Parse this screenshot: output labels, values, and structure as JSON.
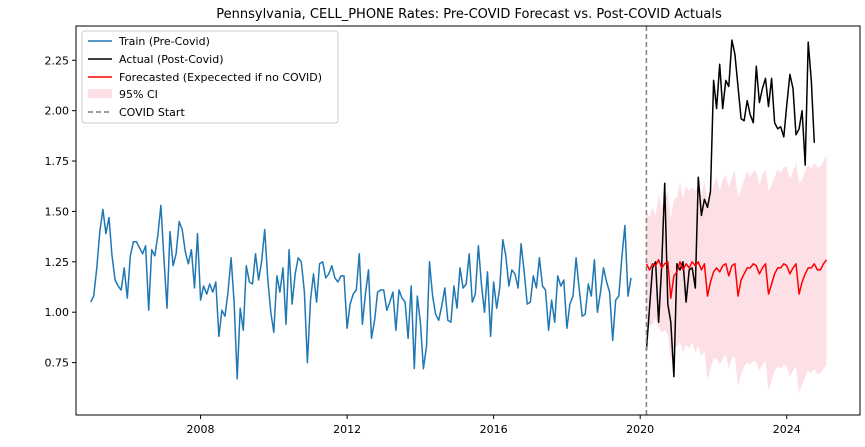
{
  "chart_data": {
    "type": "line",
    "title": "Pennsylvania, CELL_PHONE Rates: Pre-COVID Forecast vs. Post-COVID Actuals",
    "xlabel": "",
    "ylabel": "",
    "xlim": [
      2004.6,
      2026.0
    ],
    "ylim": [
      0.49,
      2.42
    ],
    "x_ticks": [
      2008,
      2012,
      2016,
      2020,
      2024
    ],
    "y_ticks": [
      0.75,
      1.0,
      1.25,
      1.5,
      1.75,
      2.0,
      2.25
    ],
    "y_tick_labels": [
      "0.75",
      "1.00",
      "1.25",
      "1.50",
      "1.75",
      "2.00",
      "2.25"
    ],
    "grid": false,
    "legend_position": "top-left",
    "covid_start": 2020.17,
    "series": [
      {
        "name": "Train (Pre-Covid)",
        "color": "#1f77b4",
        "x_start": 2005.0,
        "x_step": 0.08333,
        "values": [
          1.05,
          1.08,
          1.22,
          1.4,
          1.51,
          1.39,
          1.47,
          1.28,
          1.16,
          1.13,
          1.11,
          1.22,
          1.07,
          1.28,
          1.35,
          1.35,
          1.32,
          1.29,
          1.33,
          1.01,
          1.31,
          1.28,
          1.38,
          1.53,
          1.27,
          1.02,
          1.4,
          1.23,
          1.29,
          1.45,
          1.41,
          1.3,
          1.24,
          1.31,
          1.12,
          1.39,
          1.06,
          1.13,
          1.09,
          1.14,
          1.1,
          1.15,
          0.88,
          1.01,
          0.98,
          1.1,
          1.27,
          1.05,
          0.67,
          1.02,
          0.91,
          1.23,
          1.15,
          1.14,
          1.29,
          1.16,
          1.25,
          1.41,
          1.17,
          1.0,
          0.9,
          1.18,
          1.1,
          1.22,
          0.94,
          1.31,
          1.04,
          1.19,
          1.27,
          1.25,
          1.1,
          0.75,
          1.06,
          1.19,
          1.05,
          1.24,
          1.25,
          1.17,
          1.19,
          1.23,
          1.17,
          1.15,
          1.18,
          1.18,
          0.92,
          1.04,
          1.09,
          1.11,
          1.29,
          0.94,
          1.09,
          1.21,
          0.87,
          0.96,
          1.1,
          1.11,
          1.11,
          1.01,
          1.05,
          1.1,
          0.91,
          1.11,
          1.07,
          1.05,
          0.87,
          1.13,
          0.72,
          1.08,
          0.95,
          0.72,
          0.83,
          1.25,
          1.08,
          0.99,
          0.96,
          1.03,
          1.12,
          0.96,
          0.95,
          1.13,
          1.02,
          1.22,
          1.12,
          1.14,
          1.29,
          1.05,
          1.09,
          1.33,
          1.14,
          1.0,
          1.2,
          0.88,
          1.15,
          1.02,
          1.12,
          1.36,
          1.28,
          1.13,
          1.21,
          1.19,
          1.12,
          1.34,
          1.2,
          1.04,
          1.05,
          1.18,
          1.12,
          1.27,
          1.13,
          1.11,
          0.91,
          1.06,
          0.95,
          1.18,
          1.13,
          1.16,
          0.92,
          1.04,
          1.08,
          1.27,
          1.12,
          0.98,
          0.99,
          1.14,
          1.08,
          1.26,
          1.0,
          1.1,
          1.22,
          1.15,
          1.1,
          0.86,
          1.06,
          1.08,
          1.27,
          1.43,
          1.08,
          1.17
        ]
      },
      {
        "name": "Actual (Post-Covid)",
        "color": "#000000",
        "x_start": 2020.17,
        "x_step": 0.08333,
        "values": [
          0.81,
          1.02,
          1.22,
          1.25,
          0.95,
          1.23,
          1.64,
          1.04,
          0.95,
          0.68,
          1.24,
          1.21,
          1.25,
          1.05,
          1.21,
          1.22,
          1.12,
          1.67,
          1.48,
          1.56,
          1.52,
          1.6,
          2.15,
          2.01,
          2.23,
          2.01,
          2.15,
          2.12,
          2.35,
          2.28,
          2.12,
          1.96,
          1.95,
          2.05,
          1.98,
          1.94,
          2.22,
          2.04,
          2.11,
          2.16,
          2.02,
          2.16,
          1.94,
          1.91,
          1.92,
          1.87,
          2.03,
          2.18,
          2.11,
          1.88,
          1.91,
          2.0,
          1.73,
          2.34,
          2.15,
          1.84
        ]
      },
      {
        "name": "Forecasted (Expecected if no COVID)",
        "color": "#ff0000",
        "x_start": 2020.17,
        "x_step": 0.08333,
        "values": [
          1.24,
          1.21,
          1.24,
          1.23,
          1.26,
          1.22,
          1.24,
          1.25,
          1.07,
          1.18,
          1.2,
          1.25,
          1.21,
          1.24,
          1.22,
          1.25,
          1.23,
          1.25,
          1.21,
          1.24,
          1.08,
          1.15,
          1.2,
          1.22,
          1.2,
          1.23,
          1.24,
          1.18,
          1.23,
          1.24,
          1.08,
          1.16,
          1.19,
          1.22,
          1.22,
          1.24,
          1.23,
          1.19,
          1.22,
          1.24,
          1.09,
          1.14,
          1.19,
          1.22,
          1.22,
          1.24,
          1.23,
          1.19,
          1.22,
          1.24,
          1.09,
          1.15,
          1.19,
          1.22,
          1.22,
          1.24,
          1.21,
          1.21,
          1.24,
          1.26
        ]
      }
    ],
    "ci": {
      "name": "95% CI",
      "color": "#fde0e6",
      "x_start": 2020.17,
      "x_step": 0.08333,
      "upper": [
        1.5,
        1.47,
        1.52,
        1.48,
        1.58,
        1.52,
        1.56,
        1.6,
        1.46,
        1.56,
        1.57,
        1.65,
        1.56,
        1.63,
        1.6,
        1.62,
        1.6,
        1.63,
        1.58,
        1.65,
        1.55,
        1.58,
        1.63,
        1.67,
        1.6,
        1.66,
        1.68,
        1.62,
        1.67,
        1.7,
        1.57,
        1.61,
        1.66,
        1.7,
        1.67,
        1.7,
        1.7,
        1.63,
        1.68,
        1.71,
        1.6,
        1.63,
        1.67,
        1.71,
        1.69,
        1.72,
        1.72,
        1.66,
        1.7,
        1.74,
        1.64,
        1.66,
        1.7,
        1.73,
        1.71,
        1.74,
        1.72,
        1.72,
        1.75,
        1.78
      ],
      "lower": [
        0.96,
        0.93,
        0.94,
        0.97,
        0.92,
        0.9,
        0.91,
        0.89,
        0.76,
        0.82,
        0.83,
        0.85,
        0.8,
        0.84,
        0.82,
        0.85,
        0.8,
        0.83,
        0.78,
        0.81,
        0.66,
        0.72,
        0.77,
        0.77,
        0.74,
        0.77,
        0.79,
        0.72,
        0.77,
        0.78,
        0.63,
        0.69,
        0.73,
        0.75,
        0.74,
        0.76,
        0.75,
        0.71,
        0.74,
        0.76,
        0.61,
        0.66,
        0.71,
        0.73,
        0.72,
        0.74,
        0.73,
        0.68,
        0.71,
        0.73,
        0.6,
        0.64,
        0.68,
        0.71,
        0.7,
        0.72,
        0.69,
        0.7,
        0.72,
        0.74
      ]
    },
    "covid_label": "COVID Start"
  }
}
